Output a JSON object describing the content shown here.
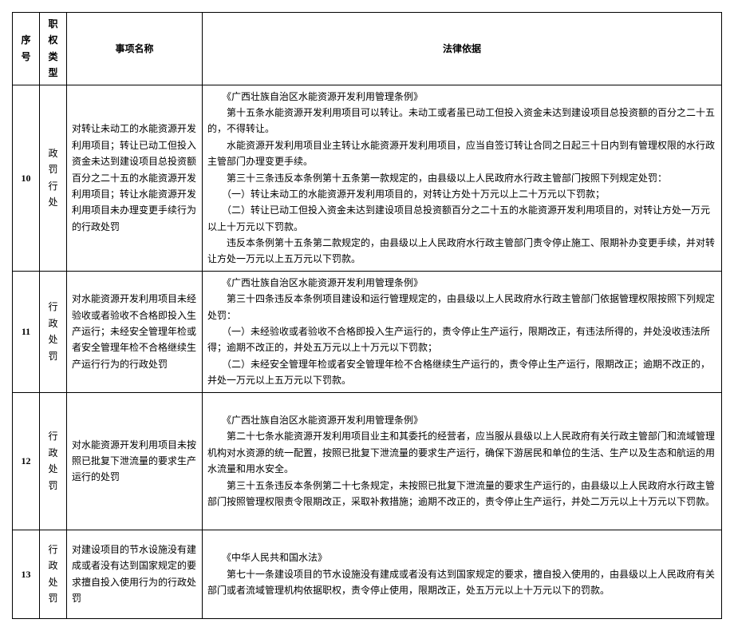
{
  "columns": [
    "序号",
    "职权类型",
    "事项名称",
    "法律依据"
  ],
  "rows": [
    {
      "idx": "10",
      "type": "政罚行处",
      "name": "对转让未动工的水能资源开发利用项目；转让已动工但投入资金未达到建设项目总投资额百分之二十五的水能资源开发利用项目；转让水能资源开发利用项目未办理变更手续行为的行政处罚",
      "basis": [
        "　　《广西壮族自治区水能资源开发利用管理条例》",
        "　　第十五条水能资源开发利用项目可以转让。未动工或者虽已动工但投入资金未达到建设项目总投资额的百分之二十五的，不得转让。",
        "　　水能资源开发利用项目业主转让水能资源开发利用项目，应当自签订转让合同之日起三十日内到有管理权限的水行政主管部门办理变更手续。",
        "　　第三十三条违反本条例第十五条第一款规定的，由县级以上人民政府水行政主管部门按照下列规定处罚：",
        "　　（一）转让未动工的水能资源开发利用项目的，对转让方处十万元以上二十万元以下罚款；",
        "　　（二）转让已动工但投入资金未达到建设项目总投资额百分之二十五的水能资源开发利用项目的，对转让方处一万元以上十万元以下罚款。",
        "　　违反本条例第十五条第二款规定的，由县级以上人民政府水行政主管部门责令停止施工、限期补办变更手续，并对转让方处一万元以上五万元以下罚款。"
      ]
    },
    {
      "idx": "11",
      "type": "行政处罚",
      "name": "对水能资源开发利用项目未经验收或者验收不合格即投入生产运行；未经安全管理年检或者安全管理年检不合格继续生产运行行为的行政处罚",
      "basis": [
        "　　《广西壮族自治区水能资源开发利用管理条例》",
        "　　第三十四条违反本条例项目建设和运行管理规定的，由县级以上人民政府水行政主管部门依据管理权限按照下列规定处罚：",
        "　　（一）未经验收或者验收不合格即投入生产运行的，责令停止生产运行，限期改正，有违法所得的，并处没收违法所得；逾期不改正的，并处五万元以上十万元以下罚款；",
        "　　（二）未经安全管理年检或者安全管理年检不合格继续生产运行的，责令停止生产运行，限期改正；逾期不改正的，并处一万元以上五万元以下罚款。"
      ]
    },
    {
      "idx": "12",
      "type": "行政处罚",
      "name": "对水能资源开发利用项目未按照已批复下泄流量的要求生产运行的处罚",
      "basis": [
        "",
        "　　《广西壮族自治区水能资源开发利用管理条例》",
        "　　第二十七条水能资源开发利用项目业主和其委托的经营者，应当服从县级以上人民政府有关行政主管部门和流域管理机构对水资源的统一配置，按照已批复下泄流量的要求生产运行，确保下游居民和单位的生活、生产以及生态和航运的用水流量和用水安全。",
        "　　第三十五条违反本条例第二十七条规定，未按照已批复下泄流量的要求生产运行的，由县级以上人民政府水行政主管部门按照管理权限责令限期改正，采取补救措施；逾期不改正的，责令停止生产运行，并处二万元以上十万元以下罚款。",
        ""
      ]
    },
    {
      "idx": "13",
      "type": "行政处罚",
      "name": "对建设项目的节水设施没有建成或者没有达到国家规定的要求擅自投入使用行为的行政处罚",
      "basis": [
        "",
        "　　《中华人民共和国水法》",
        "　　第七十一条建设项目的节水设施没有建成或者没有达到国家规定的要求，擅自投入使用的，由县级以上人民政府有关部门或者流域管理机构依据职权，责令停止使用，限期改正，处五万元以上十万元以下的罚款。",
        ""
      ]
    }
  ]
}
